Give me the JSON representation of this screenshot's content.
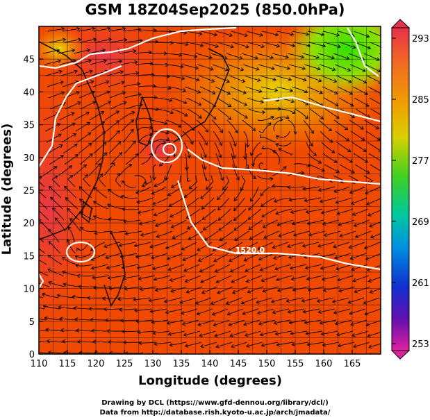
{
  "title": "GSM 18Z04Sep2025 (850.0hPa)",
  "xaxis": {
    "label": "Longitude (degrees)",
    "range": [
      110,
      170
    ],
    "ticks": [
      "110",
      "115",
      "120",
      "125",
      "130",
      "135",
      "140",
      "145",
      "150",
      "155",
      "160",
      "165"
    ]
  },
  "yaxis": {
    "label": "Latitude  (degrees)",
    "range": [
      0,
      50
    ],
    "ticks": [
      "0",
      "5",
      "10",
      "15",
      "20",
      "25",
      "30",
      "35",
      "40",
      "45"
    ]
  },
  "colorbar": {
    "min": 253,
    "max": 293,
    "labels": [
      "293",
      "285",
      "277",
      "269",
      "261",
      "253"
    ]
  },
  "contour_labels": [
    "1520.0"
  ],
  "credits": {
    "line1": "Drawing by DCL (https://www.gfd-dennou.org/library/dcl/)",
    "line2": "Data from http://database.rish.kyoto-u.ac.jp/arch/jmadata/"
  },
  "colors": {
    "warm": "#f03c00",
    "hot": "#e83030",
    "orange": "#f07800",
    "yellow": "#e8c800",
    "green": "#40e000",
    "contour": "#ffffff"
  }
}
